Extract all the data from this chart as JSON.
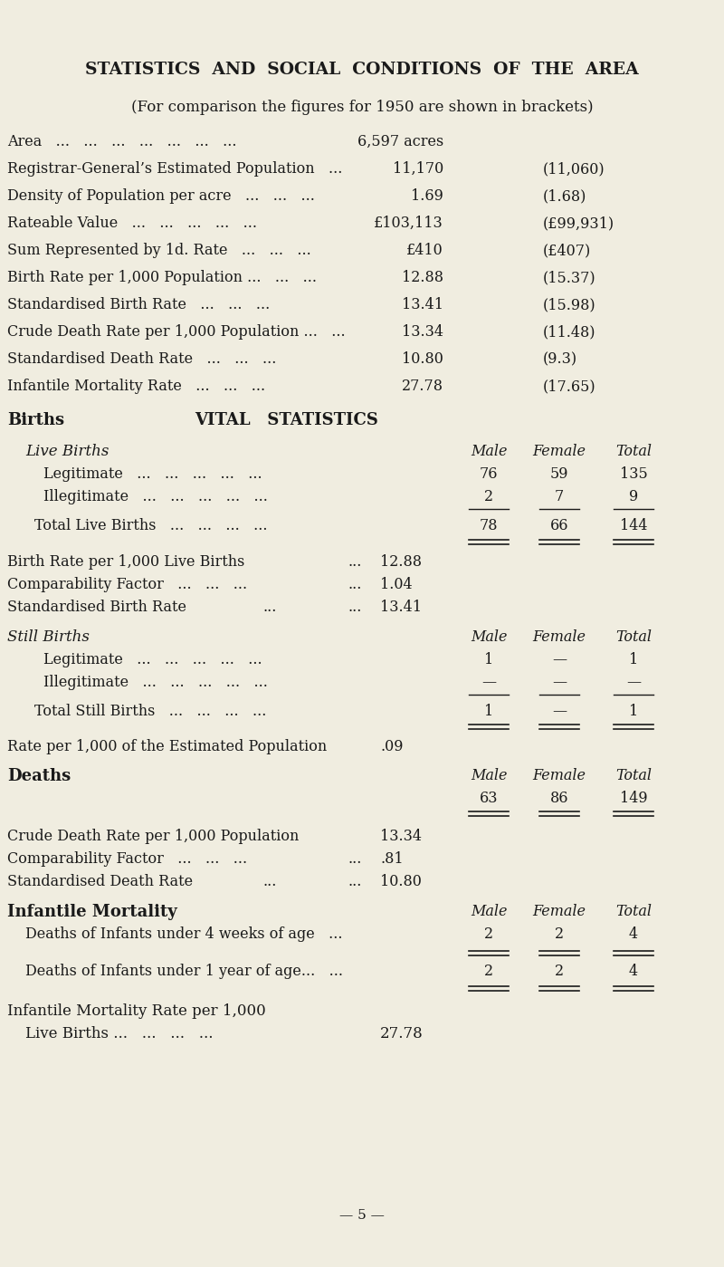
{
  "bg_color": "#f0ede0",
  "text_color": "#1a1a1a",
  "title": "STATISTICS  AND  SOCIAL  CONDITIONS  OF  THE  AREA",
  "subtitle": "(For comparison the figures for 1950 are shown in brackets)",
  "page_number": "— 5 —",
  "summary_rows": [
    {
      "label": "Area   ...   ...   ...   ...   ...   ...   ...",
      "value": "6,597 acres",
      "comparison": ""
    },
    {
      "label": "Registrar-General’s Estimated Population   ...",
      "value": "11,170",
      "comparison": "(11,060)"
    },
    {
      "label": "Density of Population per acre   ...   ...   ...",
      "value": "1.69",
      "comparison": "(1.68)"
    },
    {
      "label": "Rateable Value   ...   ...   ...   ...   ...",
      "value": "£103,113",
      "comparison": "(£99,931)"
    },
    {
      "label": "Sum Represented by 1d. Rate   ...   ...   ...",
      "value": "£410",
      "comparison": "(£407)"
    },
    {
      "label": "Birth Rate per 1,000 Population ...   ...   ...",
      "value": "12.88",
      "comparison": "(15.37)"
    },
    {
      "label": "Standardised Birth Rate   ...   ...   ...",
      "value": "13.41",
      "comparison": "(15.98)"
    },
    {
      "label": "Crude Death Rate per 1,000 Population ...   ...",
      "value": "13.34",
      "comparison": "(11.48)"
    },
    {
      "label": "Standardised Death Rate   ...   ...   ...",
      "value": "10.80",
      "comparison": "(9.3)"
    },
    {
      "label": "Infantile Mortality Rate   ...   ...   ...",
      "value": "27.78",
      "comparison": "(17.65)"
    }
  ],
  "live_births_legitimate": [
    76,
    59,
    135
  ],
  "live_births_illegitimate": [
    2,
    7,
    9
  ],
  "live_births_total": [
    78,
    66,
    144
  ],
  "birth_rate_value": "12.88",
  "comparability_factor_birth_value": "1.04",
  "standardised_birth_rate_value": "13.41",
  "still_births_legitimate": [
    "1",
    "—",
    "1"
  ],
  "still_births_illegitimate": [
    "—",
    "—",
    "—"
  ],
  "still_births_total": [
    "1",
    "—",
    "1"
  ],
  "still_births_rate_value": ".09",
  "deaths_values": [
    63,
    86,
    149
  ],
  "crude_death_rate_value": "13.34",
  "comparability_factor_death_value": ".81",
  "standardised_death_rate_value": "10.80",
  "infant_4weeks_values": [
    2,
    2,
    4
  ],
  "infant_1year_values": [
    2,
    2,
    4
  ],
  "infantile_rate_value": "27.78"
}
